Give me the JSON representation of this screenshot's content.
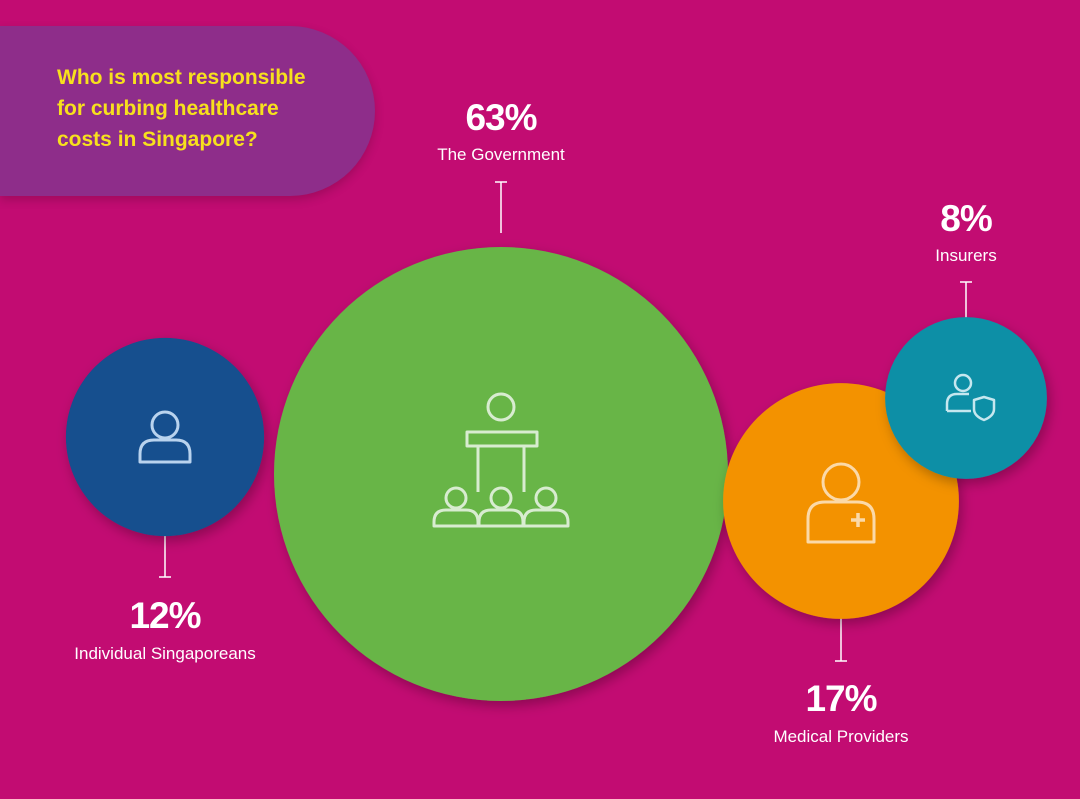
{
  "question": "Who is most responsible\nfor curbing  healthcare\ncosts in Singapore?",
  "colors": {
    "background": "#c20c72",
    "banner": "#8e2d8a",
    "question_text": "#f7e01d",
    "icon_stroke": "#e6f0e6"
  },
  "chart_data": {
    "type": "bubble",
    "title": "Who is most responsible for curbing  healthcare costs in Singapore?",
    "unit": "%",
    "categories": [
      "Individual Singaporeans",
      "The Government",
      "Medical Providers",
      "Insurers"
    ],
    "values": [
      12,
      63,
      17,
      8
    ],
    "labels": [
      "12%",
      "63%",
      "17%",
      "8%"
    ],
    "colors": [
      "#134f8e",
      "#67b546",
      "#f39200",
      "#0e8fa6"
    ],
    "icons": [
      "person-icon",
      "podium-audience-icon",
      "medical-staff-icon",
      "insured-person-icon"
    ]
  }
}
